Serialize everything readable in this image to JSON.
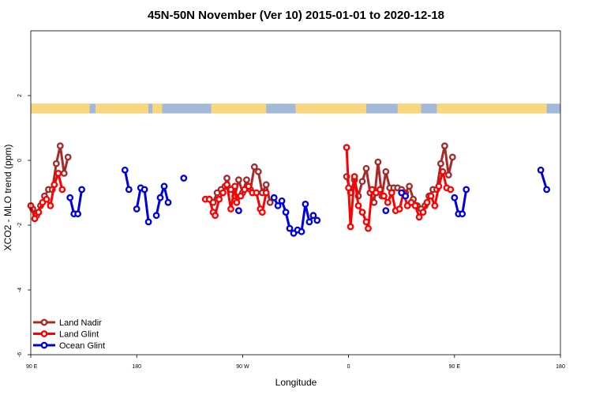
{
  "chart_data": {
    "type": "line",
    "title": "45N-50N November (Ver 10)   2015-01-01 to 2020-12-18",
    "xlabel": "Longitude",
    "ylabel": "XCO2 - MLO trend (ppm)",
    "xlim": [
      -90,
      180
    ],
    "ylim": [
      -6,
      4
    ],
    "x_ticks": [
      {
        "value": -90,
        "label": "90 E"
      },
      {
        "value": -36,
        "label": "180"
      },
      {
        "value": 18,
        "label": "90 W"
      },
      {
        "value": 72,
        "label": "0"
      },
      {
        "value": 126,
        "label": "90 E"
      },
      {
        "value": 180,
        "label": "180"
      }
    ],
    "y_ticks": [
      {
        "value": -6,
        "label": "-6"
      },
      {
        "value": -4,
        "label": "-4"
      },
      {
        "value": -2,
        "label": "-2"
      },
      {
        "value": 0,
        "label": "0"
      },
      {
        "value": 2,
        "label": "2"
      }
    ],
    "land_ocean_strip": {
      "y_range": [
        1.45,
        1.75
      ],
      "land_color": "#f9d77e",
      "ocean_color": "#a3b9da",
      "land_segments": [
        [
          -90,
          -60
        ],
        [
          -57,
          -30
        ],
        [
          -28,
          -23
        ],
        [
          2,
          30
        ],
        [
          45,
          81
        ],
        [
          97,
          109
        ],
        [
          117,
          173
        ]
      ]
    },
    "legend": {
      "position": "bottom-left",
      "entries": [
        {
          "label": "Land Nadir",
          "color": "#a52a2a"
        },
        {
          "label": "Land Glint",
          "color": "#ff0000"
        },
        {
          "label": "Ocean Glint",
          "color": "#0000dd"
        }
      ]
    },
    "series": [
      {
        "name": "Land Nadir",
        "color": "#a52a2a",
        "segments": [
          [
            [
              -89,
              -1.5
            ],
            [
              -87,
              -1.7
            ],
            [
              -85,
              -1.4
            ],
            [
              -83,
              -1.1
            ],
            [
              -81,
              -0.9
            ],
            [
              -79,
              -0.9
            ],
            [
              -77,
              -0.1
            ],
            [
              -75,
              0.45
            ],
            [
              -73,
              -0.4
            ],
            [
              -71,
              0.1
            ]
          ],
          [
            [
              1,
              -1.2
            ],
            [
              3,
              -1.3
            ],
            [
              5,
              -1.0
            ],
            [
              7,
              -0.9
            ],
            [
              9,
              -0.8
            ],
            [
              10,
              -0.55
            ],
            [
              12,
              -0.9
            ],
            [
              14,
              -1.1
            ],
            [
              16,
              -0.6
            ],
            [
              18,
              -1.0
            ],
            [
              20,
              -0.6
            ],
            [
              22,
              -0.9
            ],
            [
              24,
              -0.2
            ],
            [
              26,
              -0.35
            ],
            [
              28,
              -1.0
            ],
            [
              30,
              -0.75
            ],
            [
              32,
              -1.3
            ]
          ],
          [
            [
              71,
              -0.5
            ],
            [
              73,
              -1.0
            ],
            [
              75,
              -0.6
            ],
            [
              77,
              -1.1
            ],
            [
              79,
              -0.65
            ],
            [
              81,
              -0.25
            ],
            [
              83,
              -1.0
            ],
            [
              85,
              -1.3
            ],
            [
              87,
              -0.05
            ],
            [
              89,
              -1.1
            ],
            [
              91,
              -0.35
            ],
            [
              93,
              -0.85
            ],
            [
              95,
              -0.85
            ],
            [
              97,
              -0.85
            ],
            [
              99,
              -0.9
            ],
            [
              101,
              -1.0
            ],
            [
              103,
              -0.8
            ],
            [
              105,
              -1.2
            ],
            [
              107,
              -1.4
            ],
            [
              109,
              -1.5
            ],
            [
              111,
              -1.4
            ],
            [
              113,
              -1.1
            ],
            [
              115,
              -0.9
            ],
            [
              117,
              -0.9
            ],
            [
              119,
              -0.1
            ],
            [
              121,
              0.45
            ],
            [
              123,
              -0.45
            ],
            [
              125,
              0.1
            ]
          ]
        ]
      },
      {
        "name": "Land Glint",
        "color": "#ff0000",
        "segments": [
          [
            [
              -90,
              -1.4
            ],
            [
              -88,
              -1.8
            ],
            [
              -86,
              -1.6
            ],
            [
              -84,
              -1.3
            ],
            [
              -82,
              -1.2
            ],
            [
              -80,
              -1.4
            ],
            [
              -78,
              -0.75
            ],
            [
              -76,
              -0.4
            ],
            [
              -74,
              -0.9
            ]
          ],
          [
            [
              -1,
              -1.2
            ],
            [
              1,
              -1.2
            ],
            [
              3,
              -1.6
            ],
            [
              4,
              -1.7
            ],
            [
              6,
              -1.2
            ],
            [
              8,
              -1.0
            ],
            [
              10,
              -0.75
            ],
            [
              12,
              -1.5
            ],
            [
              14,
              -0.8
            ],
            [
              15,
              -1.3
            ],
            [
              17,
              -1.1
            ],
            [
              19,
              -0.9
            ],
            [
              21,
              -0.8
            ],
            [
              23,
              -1.0
            ],
            [
              25,
              -1.0
            ],
            [
              27,
              -1.5
            ],
            [
              28,
              -1.6
            ],
            [
              30,
              -1.0
            ]
          ],
          [
            [
              71,
              0.4
            ],
            [
              72,
              -0.85
            ],
            [
              73,
              -2.05
            ],
            [
              75,
              -0.5
            ],
            [
              77,
              -1.4
            ],
            [
              79,
              -1.6
            ],
            [
              81,
              -1.9
            ],
            [
              82,
              -2.1
            ],
            [
              84,
              -0.9
            ],
            [
              86,
              -1.0
            ],
            [
              88,
              -0.9
            ],
            [
              90,
              -1.1
            ],
            [
              92,
              -1.3
            ],
            [
              94,
              -1.0
            ],
            [
              96,
              -1.55
            ],
            [
              98,
              -1.5
            ],
            [
              100,
              -1.0
            ],
            [
              102,
              -1.4
            ],
            [
              104,
              -1.3
            ],
            [
              106,
              -1.4
            ],
            [
              108,
              -1.75
            ],
            [
              110,
              -1.6
            ],
            [
              112,
              -1.3
            ],
            [
              114,
              -1.1
            ],
            [
              116,
              -1.4
            ],
            [
              118,
              -0.8
            ],
            [
              120,
              -0.35
            ],
            [
              122,
              -0.85
            ],
            [
              124,
              -0.9
            ]
          ]
        ]
      },
      {
        "name": "Ocean Glint",
        "color": "#0000dd",
        "segments": [
          [
            [
              -70,
              -1.15
            ],
            [
              -68,
              -1.65
            ],
            [
              -66,
              -1.65
            ],
            [
              -64,
              -0.9
            ]
          ],
          [
            [
              -42,
              -0.3
            ],
            [
              -40,
              -0.9
            ]
          ],
          [
            [
              -36,
              -1.5
            ],
            [
              -34,
              -0.85
            ],
            [
              -32,
              -0.9
            ],
            [
              -30,
              -1.9
            ]
          ],
          [
            [
              -26,
              -1.7
            ],
            [
              -24,
              -1.15
            ],
            [
              -22,
              -0.8
            ],
            [
              -20,
              -1.3
            ]
          ],
          [
            [
              -12,
              -0.55
            ]
          ],
          [
            [
              16,
              -1.55
            ]
          ],
          [
            [
              34,
              -1.15
            ],
            [
              36,
              -1.4
            ],
            [
              38,
              -1.25
            ],
            [
              40,
              -1.6
            ],
            [
              42,
              -2.1
            ],
            [
              44,
              -2.25
            ],
            [
              46,
              -2.15
            ],
            [
              48,
              -2.2
            ],
            [
              50,
              -1.35
            ],
            [
              52,
              -1.9
            ],
            [
              54,
              -1.7
            ],
            [
              56,
              -1.85
            ]
          ],
          [
            [
              91,
              -1.55
            ]
          ],
          [
            [
              99,
              -1.0
            ],
            [
              101,
              -1.1
            ]
          ],
          [
            [
              126,
              -1.15
            ],
            [
              128,
              -1.65
            ],
            [
              130,
              -1.65
            ],
            [
              132,
              -0.9
            ]
          ],
          [
            [
              170,
              -0.3
            ],
            [
              173,
              -0.9
            ]
          ]
        ]
      }
    ]
  }
}
